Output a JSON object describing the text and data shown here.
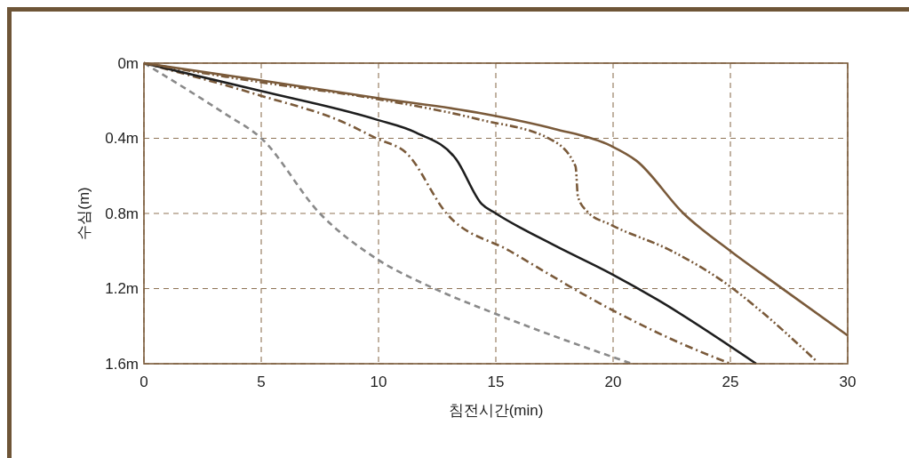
{
  "chart_data": {
    "type": "line",
    "xlabel": "침전시간(min)",
    "ylabel": "수심(m)",
    "xlim": [
      0,
      30
    ],
    "xticks": [
      0,
      5,
      10,
      15,
      20,
      25,
      30
    ],
    "ylim": [
      1.6,
      0
    ],
    "yticks": [
      {
        "value": 0,
        "label": "0m"
      },
      {
        "value": 0.4,
        "label": "0.4m"
      },
      {
        "value": 0.8,
        "label": "0.8m"
      },
      {
        "value": 1.2,
        "label": "1.2m"
      },
      {
        "value": 1.6,
        "label": "1.6m"
      }
    ],
    "grid": true,
    "series": [
      {
        "color": "#8a8a8a",
        "line_style": "dashed",
        "x": [
          0,
          3.4,
          5,
          7.5,
          9.9,
          12.2,
          14.9,
          20.8
        ],
        "values": [
          0,
          0.265,
          0.4,
          0.8,
          1.04,
          1.19,
          1.33,
          1.6
        ]
      },
      {
        "color": "#7a5a3a",
        "line_style": "dashdot",
        "x": [
          0,
          4.9,
          8.6,
          9.9,
          11.2,
          12.9,
          15.6,
          19.9,
          22.5,
          25
        ],
        "values": [
          0,
          0.17,
          0.32,
          0.4,
          0.48,
          0.8,
          1.0,
          1.31,
          1.47,
          1.6
        ]
      },
      {
        "color": "#1e1e1e",
        "line_style": "solid",
        "x": [
          0,
          4.9,
          9.9,
          11.6,
          13.3,
          14.4,
          15,
          17.5,
          19.9,
          21.9,
          26.1
        ],
        "values": [
          0,
          0.146,
          0.3,
          0.37,
          0.51,
          0.75,
          0.8,
          0.97,
          1.12,
          1.26,
          1.6
        ]
      },
      {
        "color": "#7a5a3a",
        "line_style": "dashdotdot",
        "x": [
          0,
          4.9,
          9.9,
          14.3,
          17.4,
          18.4,
          18.5,
          18.9,
          19.9,
          22.5,
          25,
          26.3,
          28.7
        ],
        "values": [
          0,
          0.1,
          0.19,
          0.3,
          0.41,
          0.55,
          0.71,
          0.79,
          0.86,
          1.0,
          1.19,
          1.32,
          1.59
        ]
      },
      {
        "color": "#7a5a3a",
        "line_style": "solid",
        "x": [
          0,
          4.9,
          9.9,
          14.3,
          17.5,
          19.9,
          21,
          23,
          25,
          27.1,
          30
        ],
        "values": [
          0,
          0.09,
          0.185,
          0.265,
          0.35,
          0.44,
          0.52,
          0.8,
          1.0,
          1.19,
          1.45
        ]
      }
    ]
  }
}
